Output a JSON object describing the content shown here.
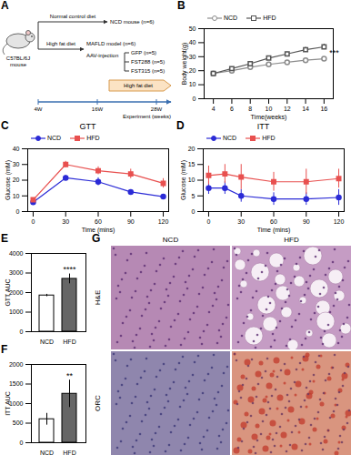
{
  "panel_letters": [
    "A",
    "B",
    "C",
    "D",
    "E",
    "F",
    "G"
  ],
  "diagram": {
    "mouse_label": [
      "C57BL/6J",
      "mouse"
    ],
    "control_diet": "Normal control diet",
    "control_group": "NCD mouse (n=6)",
    "hfd": "High fat diet",
    "model_group": "MAFLD model (n=6)",
    "injection": "AAV-injection",
    "groups": [
      "GFP (n=5)",
      "FST288 (n=5)",
      "FST315 (n=5)"
    ],
    "hfd_continued": "High fat diet",
    "timeline_label": "Experiment (weeks)",
    "timeline_ticks": [
      "4W",
      "16W",
      "28W"
    ]
  },
  "chart_data": [
    {
      "type": "line",
      "xlabel": "Time(weeks)",
      "ylabel": "Body weight(g)",
      "legend": "top-left",
      "x": [
        4,
        6,
        8,
        10,
        12,
        14,
        16
      ],
      "xlim": [
        3,
        17
      ],
      "xticks": [
        4,
        6,
        8,
        10,
        12,
        14,
        16
      ],
      "ylim": [
        0,
        50
      ],
      "yticks": [
        0,
        10,
        20,
        30,
        40,
        50
      ],
      "series": [
        {
          "name": "NCD",
          "color": "#8c8c8c",
          "marker": "circle-open",
          "values": [
            18,
            20,
            22.5,
            24.5,
            26,
            27.5,
            28.5
          ],
          "errors": [
            0.5,
            0.6,
            0.8,
            0.8,
            1,
            1,
            1.2
          ]
        },
        {
          "name": "HFD",
          "color": "#555555",
          "marker": "square-open",
          "values": [
            18,
            21.5,
            25,
            29,
            32,
            35,
            37
          ],
          "errors": [
            0.6,
            0.8,
            1,
            1.2,
            1.5,
            1.8,
            2
          ]
        }
      ],
      "annotations": [
        {
          "x": 16,
          "y": 33,
          "text": "***"
        }
      ]
    },
    {
      "type": "line",
      "title": "GTT",
      "xlabel": "Time (mins)",
      "ylabel": "Glucose (mM)",
      "legend": "top-left",
      "x": [
        0,
        30,
        60,
        90,
        120
      ],
      "xlim": [
        -5,
        125
      ],
      "xticks": [
        0,
        30,
        60,
        90,
        120
      ],
      "ylim": [
        0,
        40
      ],
      "yticks": [
        0,
        10,
        20,
        30,
        40
      ],
      "series": [
        {
          "name": "NCD",
          "color": "#2b2bd6",
          "marker": "circle",
          "values": [
            6,
            21.5,
            19,
            12.5,
            9.5
          ],
          "errors": [
            1,
            1.5,
            2.5,
            1,
            1
          ]
        },
        {
          "name": "HFD",
          "color": "#e8504f",
          "marker": "square",
          "values": [
            7.5,
            30,
            26,
            24,
            18
          ],
          "errors": [
            1,
            2,
            2.5,
            3,
            3
          ]
        }
      ]
    },
    {
      "type": "line",
      "title": "ITT",
      "xlabel": "Time (mins)",
      "ylabel": "Glucose (mM)",
      "legend": "top-left",
      "x": [
        0,
        15,
        30,
        60,
        90,
        120
      ],
      "xlim": [
        -5,
        125
      ],
      "xticks": [
        0,
        30,
        60,
        90,
        120
      ],
      "ylim": [
        0,
        20
      ],
      "yticks": [
        0,
        5,
        10,
        15,
        20
      ],
      "series": [
        {
          "name": "NCD",
          "color": "#2b2bd6",
          "marker": "circle",
          "values": [
            7.5,
            7.5,
            5,
            4,
            4,
            4.5
          ],
          "errors": [
            2,
            2,
            2,
            2,
            2,
            2.5
          ]
        },
        {
          "name": "HFD",
          "color": "#e8504f",
          "marker": "square",
          "values": [
            11.5,
            12,
            11,
            9.5,
            9.5,
            10.5
          ],
          "errors": [
            3,
            3,
            4,
            3,
            4,
            3
          ]
        }
      ]
    },
    {
      "type": "bar",
      "ylabel": "GTT AUC",
      "categories": [
        "NCD",
        "HFD"
      ],
      "values": [
        1850,
        2700
      ],
      "errors": [
        60,
        250
      ],
      "colors": [
        "#ffffff",
        "#666666"
      ],
      "ylim": [
        0,
        4000
      ],
      "yticks": [
        0,
        1000,
        2000,
        3000,
        4000
      ],
      "annotations": [
        {
          "category": "HFD",
          "text": "****"
        }
      ]
    },
    {
      "type": "bar",
      "ylabel": "ITT AUC",
      "categories": [
        "NCD",
        "HFD"
      ],
      "values": [
        600,
        1250
      ],
      "errors": [
        150,
        350
      ],
      "colors": [
        "#ffffff",
        "#666666"
      ],
      "ylim": [
        0,
        2000
      ],
      "yticks": [
        0,
        500,
        1000,
        1500,
        2000
      ],
      "annotations": [
        {
          "category": "HFD",
          "text": "**"
        }
      ]
    }
  ],
  "histology": {
    "columns": [
      "NCD",
      "HFD"
    ],
    "rows": [
      "H&E",
      "ORC"
    ]
  }
}
